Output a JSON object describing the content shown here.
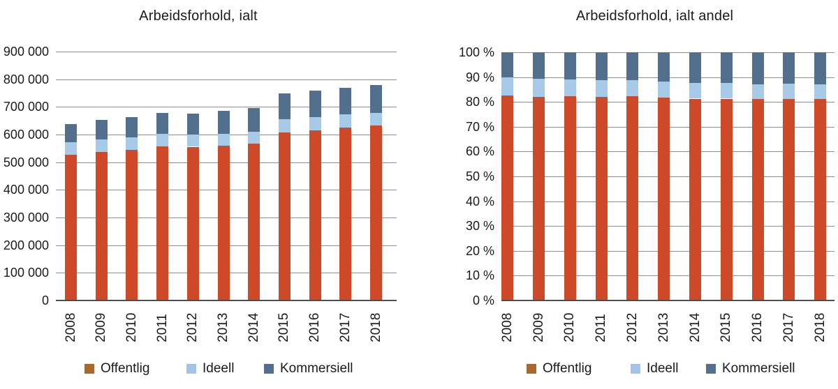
{
  "page": {
    "background": "#ffffff"
  },
  "colors": {
    "offentlig_bar": "#cd4927",
    "ideell_bar": "#a6cae8",
    "kommersiell_bar": "#52708d",
    "offentlig_swatch": "#a8682e",
    "ideell_swatch": "#a5c3e8",
    "kommersiell_swatch": "#53718e",
    "gridline": "#8e8e8e",
    "axis_line": "#4d4d4d",
    "text": "#1a1a1a"
  },
  "chart_data": [
    {
      "type": "bar",
      "stacked": true,
      "title": "Arbeidsforhold, ialt",
      "categories": [
        "2008",
        "2009",
        "2010",
        "2011",
        "2012",
        "2013",
        "2014",
        "2015",
        "2016",
        "2017",
        "2018"
      ],
      "series": [
        {
          "name": "Offentlig",
          "color": "offentlig",
          "values": [
            527000,
            536000,
            545000,
            557000,
            556000,
            560000,
            567000,
            608000,
            616000,
            626000,
            632000
          ]
        },
        {
          "name": "Ideell",
          "color": "ideell",
          "values": [
            46000,
            47000,
            46000,
            46000,
            43000,
            43000,
            44000,
            47000,
            46000,
            46000,
            46000
          ]
        },
        {
          "name": "Kommersiell",
          "color": "kommersiell",
          "values": [
            64000,
            70000,
            72000,
            75000,
            76000,
            82000,
            86000,
            93000,
            98000,
            98000,
            100000
          ]
        }
      ],
      "ylim": [
        0,
        900000
      ],
      "ytick_labels": [
        "0",
        "100 000",
        "200 000",
        "300 000",
        "400 000",
        "500 000",
        "600 000",
        "700 000",
        "800 000",
        "900 000"
      ],
      "grid": true,
      "legend_position": "bottom",
      "x_label_rotation": -90
    },
    {
      "type": "bar",
      "stacked": true,
      "unit": "percent",
      "title": "Arbeidsforhold, ialt andel",
      "categories": [
        "2008",
        "2009",
        "2010",
        "2011",
        "2012",
        "2013",
        "2014",
        "2015",
        "2016",
        "2017",
        "2018"
      ],
      "series": [
        {
          "name": "Offentlig",
          "color": "offentlig",
          "values": [
            82.7,
            82.1,
            82.2,
            82.1,
            82.4,
            81.8,
            81.3,
            81.3,
            81.1,
            81.3,
            81.2
          ]
        },
        {
          "name": "Ideell",
          "color": "ideell",
          "values": [
            7.2,
            7.2,
            6.9,
            6.8,
            6.4,
            6.3,
            6.3,
            6.3,
            6.1,
            6.0,
            5.9
          ]
        },
        {
          "name": "Kommersiell",
          "color": "kommersiell",
          "values": [
            10.1,
            10.7,
            10.9,
            11.1,
            11.2,
            11.9,
            12.4,
            12.4,
            12.8,
            12.7,
            12.9
          ]
        }
      ],
      "ylim": [
        0,
        100
      ],
      "ytick_labels": [
        "0 %",
        "10 %",
        "20 %",
        "30 %",
        "40 %",
        "50 %",
        "60 %",
        "70 %",
        "80 %",
        "90 %",
        "100 %"
      ],
      "grid": true,
      "legend_position": "bottom",
      "x_label_rotation": -90
    }
  ]
}
